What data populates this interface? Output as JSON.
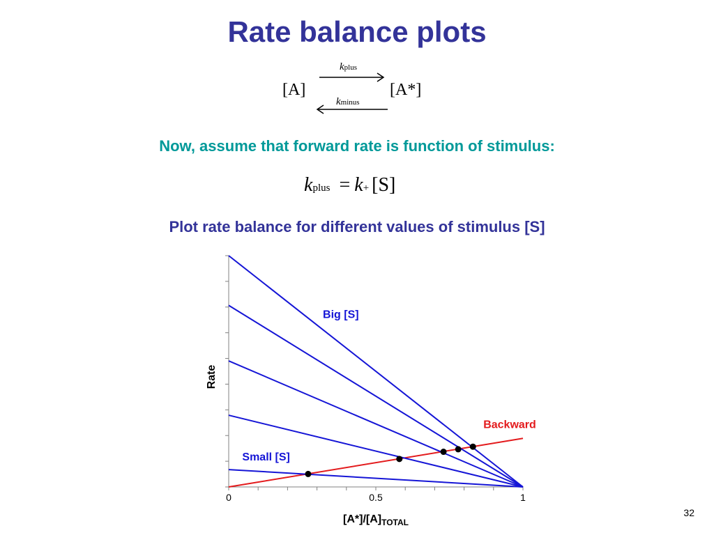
{
  "slide": {
    "title": "Rate balance plots",
    "reaction": {
      "reactant": "[A]",
      "product": "[A*]",
      "forward_rate": "k",
      "forward_sub": "plus",
      "backward_rate": "k",
      "backward_sub": "minus"
    },
    "subhead_1": "Now, assume that forward rate is function of stimulus:",
    "equation": {
      "lhs": "k",
      "lhs_sub": "plus",
      "eq": "=",
      "rhs": "k",
      "rhs_sub": "+",
      "rhs_rest": "[S]"
    },
    "subhead_2": "Plot rate balance for different values of stimulus [S]",
    "page_number": "32"
  },
  "chart_data": {
    "type": "line",
    "xlabel": "[A*]/[A]",
    "xlabel_sub": "TOTAL",
    "ylabel": "Rate",
    "xlim": [
      0,
      1
    ],
    "ylim": [
      0,
      1
    ],
    "x_ticks": [
      "0",
      "0.5",
      "1"
    ],
    "series": [
      {
        "name": "Backward",
        "color": "#e31a1c",
        "x": [
          0,
          1
        ],
        "y": [
          0,
          0.21
        ]
      },
      {
        "color": "#1515d6",
        "x": [
          0,
          1
        ],
        "y": [
          0.075,
          0
        ]
      },
      {
        "color": "#1515d6",
        "x": [
          0,
          1
        ],
        "y": [
          0.31,
          0
        ]
      },
      {
        "color": "#1515d6",
        "x": [
          0,
          1
        ],
        "y": [
          0.545,
          0
        ]
      },
      {
        "color": "#1515d6",
        "x": [
          0,
          1
        ],
        "y": [
          0.785,
          0
        ]
      },
      {
        "color": "#1515d6",
        "x": [
          0,
          1
        ],
        "y": [
          1.0,
          0
        ]
      }
    ],
    "intersections": [
      {
        "x": 0.27,
        "y": 0.056
      },
      {
        "x": 0.58,
        "y": 0.121
      },
      {
        "x": 0.73,
        "y": 0.152
      },
      {
        "x": 0.78,
        "y": 0.163
      },
      {
        "x": 0.83,
        "y": 0.174
      }
    ],
    "annotations": {
      "big": "Big [S]",
      "small": "Small [S]",
      "backward": "Backward"
    },
    "annotation_colors": {
      "big": "#1515d6",
      "small": "#1515d6",
      "backward": "#e31a1c"
    },
    "grid": false
  }
}
